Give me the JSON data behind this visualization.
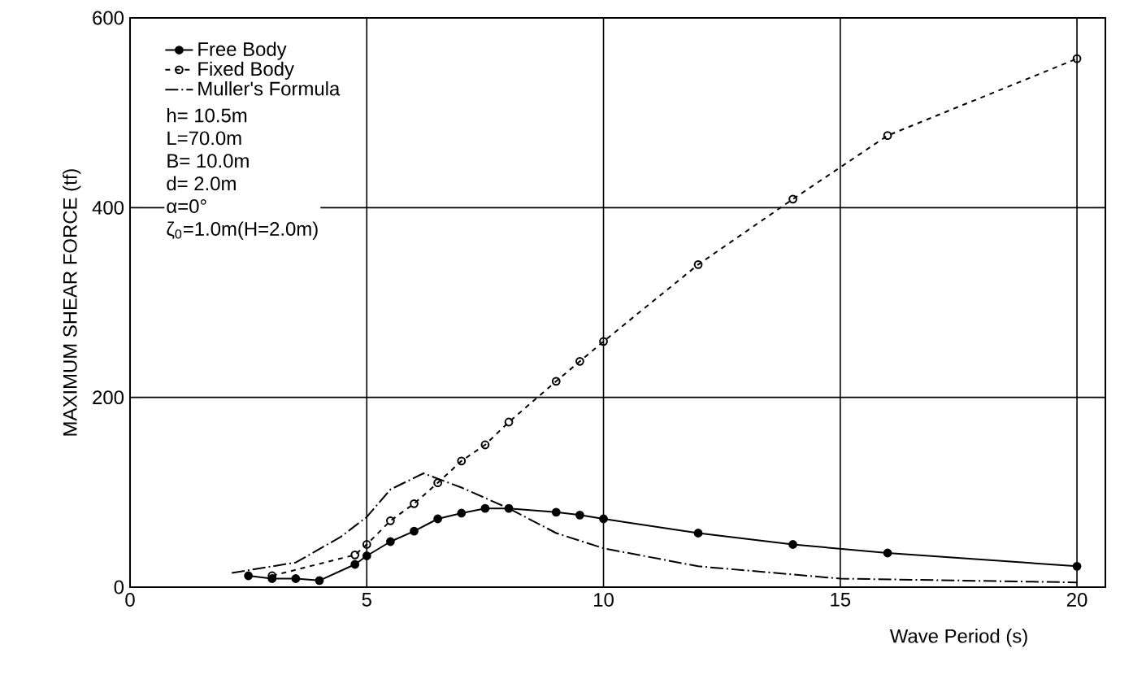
{
  "chart_data": {
    "type": "line",
    "xlabel": "Wave Period (s)",
    "ylabel": "MAXIMUM SHEAR FORCE (tf)",
    "xlim": [
      0,
      20.6
    ],
    "ylim": [
      0,
      600
    ],
    "xticks": [
      0,
      5,
      10,
      15,
      20
    ],
    "yticks": [
      0,
      200,
      400,
      600
    ],
    "grid": true,
    "legend": "top left",
    "annotations": [
      "h= 10.5m",
      "L=70.0m",
      "B= 10.0m",
      "d=  2.0m",
      "α=0°",
      "ζ$_{0}$=1.0m(H=2.0m)"
    ],
    "series": [
      {
        "name": "Free Body",
        "color": "#000000",
        "marker": "circle",
        "line_style": "solid",
        "x": [
          2.5,
          3.0,
          3.5,
          4.0,
          4.75,
          5.0,
          5.5,
          6.0,
          6.5,
          7.0,
          7.5,
          8.0,
          9.0,
          9.5,
          10,
          12,
          14,
          16,
          20
        ],
        "values": [
          12,
          9,
          9,
          7,
          24,
          33,
          48,
          59,
          72,
          78,
          83,
          83,
          79,
          76,
          72,
          57,
          45,
          36,
          22
        ]
      },
      {
        "name": "Fixed Body",
        "color": "#000000",
        "marker": "open circle",
        "line_style": "dashed",
        "x": [
          3.0,
          4.75,
          5.0,
          5.5,
          6.0,
          6.5,
          7.0,
          7.5,
          8.0,
          9.0,
          9.5,
          10,
          12,
          14,
          16,
          20
        ],
        "values": [
          12,
          34,
          45,
          70,
          88,
          110,
          133,
          150,
          174,
          217,
          238,
          259,
          340,
          409,
          476,
          557
        ]
      },
      {
        "name": "Muller's Formula",
        "color": "#000000",
        "marker": "none",
        "line_style": "dashdotted",
        "x": [
          2.15,
          3.5,
          4.45,
          5.0,
          5.5,
          6.2,
          7.0,
          8.0,
          9.0,
          10,
          12,
          15,
          20
        ],
        "values": [
          15,
          26,
          53,
          74,
          103,
          120,
          105,
          83,
          57,
          41,
          22,
          9,
          5
        ]
      }
    ]
  }
}
